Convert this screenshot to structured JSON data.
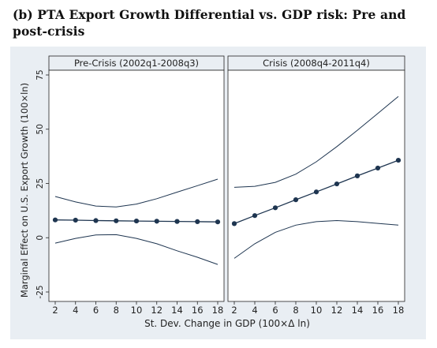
{
  "figure": {
    "title": "(b) PTA Export Growth Differential vs. GDP risk: Pre and post-crisis"
  },
  "chart_data": {
    "type": "line",
    "ylabel": "Marginal Effect on U.S. Export Growth (100×ln)",
    "xlabel": "St. Dev. Change in GDP (100×Δ ln)",
    "ylim": [
      -25,
      75
    ],
    "yticks": [
      -25,
      0,
      25,
      50,
      75
    ],
    "xlim": [
      2,
      18
    ],
    "xticks": [
      2,
      4,
      6,
      8,
      10,
      12,
      14,
      16,
      18
    ],
    "grid": false,
    "panels": [
      {
        "title": "Pre-Crisis (2002q1-2008q3)",
        "x": [
          2,
          4,
          6,
          8,
          10,
          12,
          14,
          16,
          18
        ],
        "series": [
          {
            "role": "estimate",
            "markers": true,
            "values": [
              8.2,
              8.1,
              7.9,
              7.8,
              7.7,
              7.6,
              7.5,
              7.4,
              7.3
            ]
          },
          {
            "role": "upper",
            "markers": false,
            "values": [
              19.0,
              16.5,
              14.6,
              14.2,
              15.5,
              18.0,
              21.0,
              24.0,
              27.0
            ]
          },
          {
            "role": "lower",
            "markers": false,
            "values": [
              -2.5,
              -0.3,
              1.3,
              1.4,
              -0.3,
              -2.8,
              -6.0,
              -9.0,
              -12.3
            ]
          }
        ]
      },
      {
        "title": "Crisis (2008q4-2011q4)",
        "x": [
          2,
          4,
          6,
          8,
          10,
          12,
          14,
          16,
          18
        ],
        "series": [
          {
            "role": "estimate",
            "markers": true,
            "values": [
              6.5,
              10.2,
              13.8,
              17.5,
              21.1,
              24.8,
              28.5,
              32.1,
              35.7
            ]
          },
          {
            "role": "upper",
            "markers": false,
            "values": [
              23.2,
              23.7,
              25.5,
              29.3,
              35.0,
              42.0,
              49.5,
              57.3,
              65.1
            ]
          },
          {
            "role": "lower",
            "markers": false,
            "values": [
              -9.5,
              -2.8,
              2.5,
              5.8,
              7.4,
              7.9,
              7.4,
              6.6,
              5.8
            ]
          }
        ]
      }
    ],
    "colors": {
      "outer_bg": "#e9eef3",
      "panel_bg": "#ffffff",
      "strip_bg": "#e9eef3",
      "line": "#1e3550",
      "marker": "#1e3550",
      "border": "#222222"
    }
  }
}
